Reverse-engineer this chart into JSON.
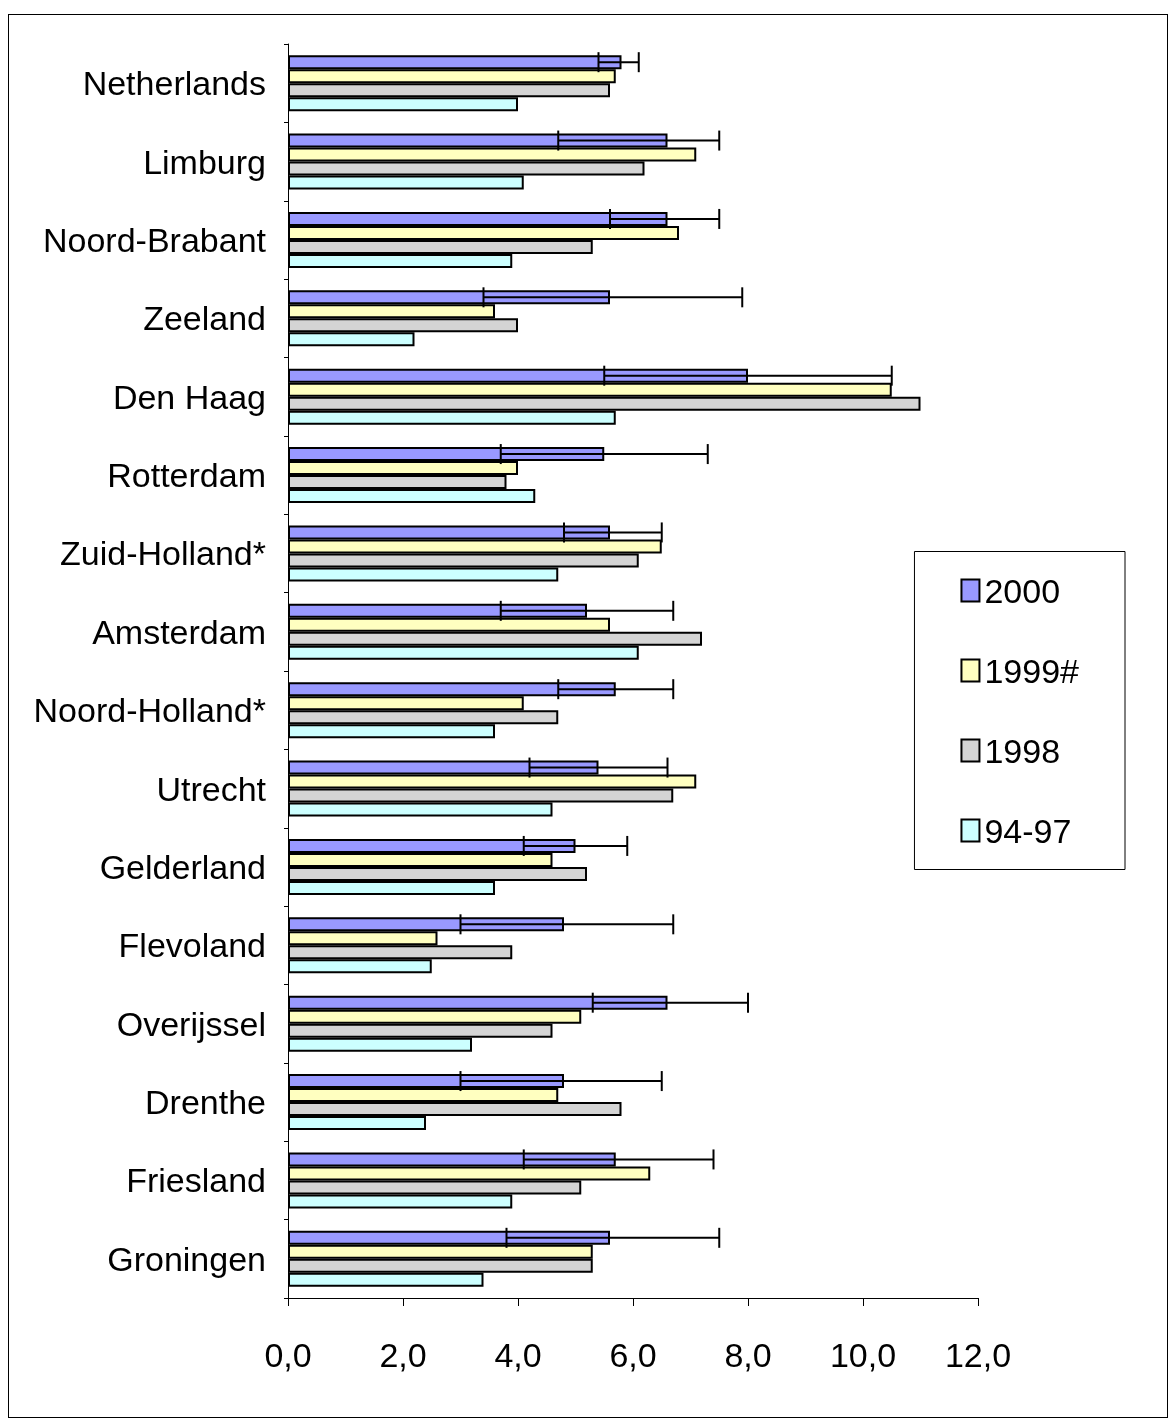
{
  "chart_data": {
    "type": "bar",
    "orientation": "horizontal",
    "categories": [
      "Netherlands",
      "Limburg",
      "Noord-Brabant",
      "Zeeland",
      "Den Haag",
      "Rotterdam",
      "Zuid-Holland*",
      "Amsterdam",
      "Noord-Holland*",
      "Utrecht",
      "Gelderland",
      "Flevoland",
      "Overijssel",
      "Drenthe",
      "Friesland",
      "Groningen"
    ],
    "series": [
      {
        "name": "2000",
        "color": "#9999ff",
        "values": [
          5.8,
          6.6,
          6.6,
          5.6,
          8.0,
          5.5,
          5.6,
          5.2,
          5.7,
          5.4,
          5.0,
          4.8,
          6.6,
          4.8,
          5.7,
          5.6
        ],
        "errors": [
          [
            5.4,
            6.1
          ],
          [
            4.7,
            7.5
          ],
          [
            5.6,
            7.5
          ],
          [
            3.4,
            7.9
          ],
          [
            5.5,
            10.5
          ],
          [
            3.7,
            7.3
          ],
          [
            4.8,
            6.5
          ],
          [
            3.7,
            6.7
          ],
          [
            4.7,
            6.7
          ],
          [
            4.2,
            6.6
          ],
          [
            4.1,
            5.9
          ],
          [
            3.0,
            6.7
          ],
          [
            5.3,
            8.0
          ],
          [
            3.0,
            6.5
          ],
          [
            4.1,
            7.4
          ],
          [
            3.8,
            7.5
          ]
        ]
      },
      {
        "name": "1999#",
        "color": "#ffffc0",
        "values": [
          5.7,
          7.1,
          6.8,
          3.6,
          10.5,
          4.0,
          6.5,
          5.6,
          4.1,
          7.1,
          4.6,
          2.6,
          5.1,
          4.7,
          6.3,
          5.3
        ]
      },
      {
        "name": "1998",
        "color": "#d4d4d4",
        "values": [
          5.6,
          6.2,
          5.3,
          4.0,
          11.0,
          3.8,
          6.1,
          7.2,
          4.7,
          6.7,
          5.2,
          3.9,
          4.6,
          5.8,
          5.1,
          5.3
        ]
      },
      {
        "name": "94-97",
        "color": "#ccffff",
        "values": [
          4.0,
          4.1,
          3.9,
          2.2,
          5.7,
          4.3,
          4.7,
          6.1,
          3.6,
          4.6,
          3.6,
          2.5,
          3.2,
          2.4,
          3.9,
          3.4
        ]
      }
    ],
    "xlim": [
      0,
      12
    ],
    "xticks": [
      {
        "value": 0,
        "label": "0,0"
      },
      {
        "value": 2,
        "label": "2,0"
      },
      {
        "value": 4,
        "label": "4,0"
      },
      {
        "value": 6,
        "label": "6,0"
      },
      {
        "value": 8,
        "label": "8,0"
      },
      {
        "value": 10,
        "label": "10,0"
      },
      {
        "value": 12,
        "label": "12,0"
      }
    ],
    "grid": false,
    "legend": "right"
  }
}
